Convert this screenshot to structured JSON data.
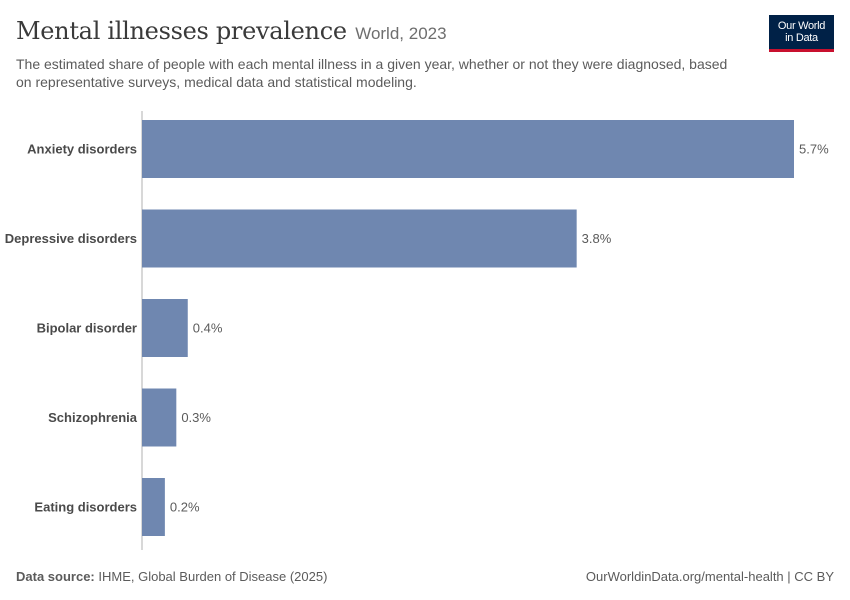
{
  "header": {
    "title": "Mental illnesses prevalence",
    "entity_year": "World, 2023",
    "description": "The estimated share of people with each mental illness in a given year, whether or not they were diagnosed, based on representative surveys, medical data and statistical modeling."
  },
  "logo": {
    "line1": "Our World",
    "line2": "in Data",
    "bg_color": "#002147",
    "accent_color": "#c8102e"
  },
  "chart_data": {
    "type": "bar",
    "orientation": "horizontal",
    "categories": [
      "Anxiety disorders",
      "Depressive disorders",
      "Bipolar disorder",
      "Schizophrenia",
      "Eating disorders"
    ],
    "values": [
      5.7,
      3.8,
      0.4,
      0.3,
      0.2
    ],
    "value_labels": [
      "5.7%",
      "3.8%",
      "0.4%",
      "0.3%",
      "0.2%"
    ],
    "xlim": [
      0,
      5.7
    ],
    "bar_color": "#6f87b0",
    "grid": false
  },
  "footer": {
    "source_label": "Data source:",
    "source_text": "IHME, Global Burden of Disease (2025)",
    "right_text": "OurWorldinData.org/mental-health | CC BY"
  }
}
